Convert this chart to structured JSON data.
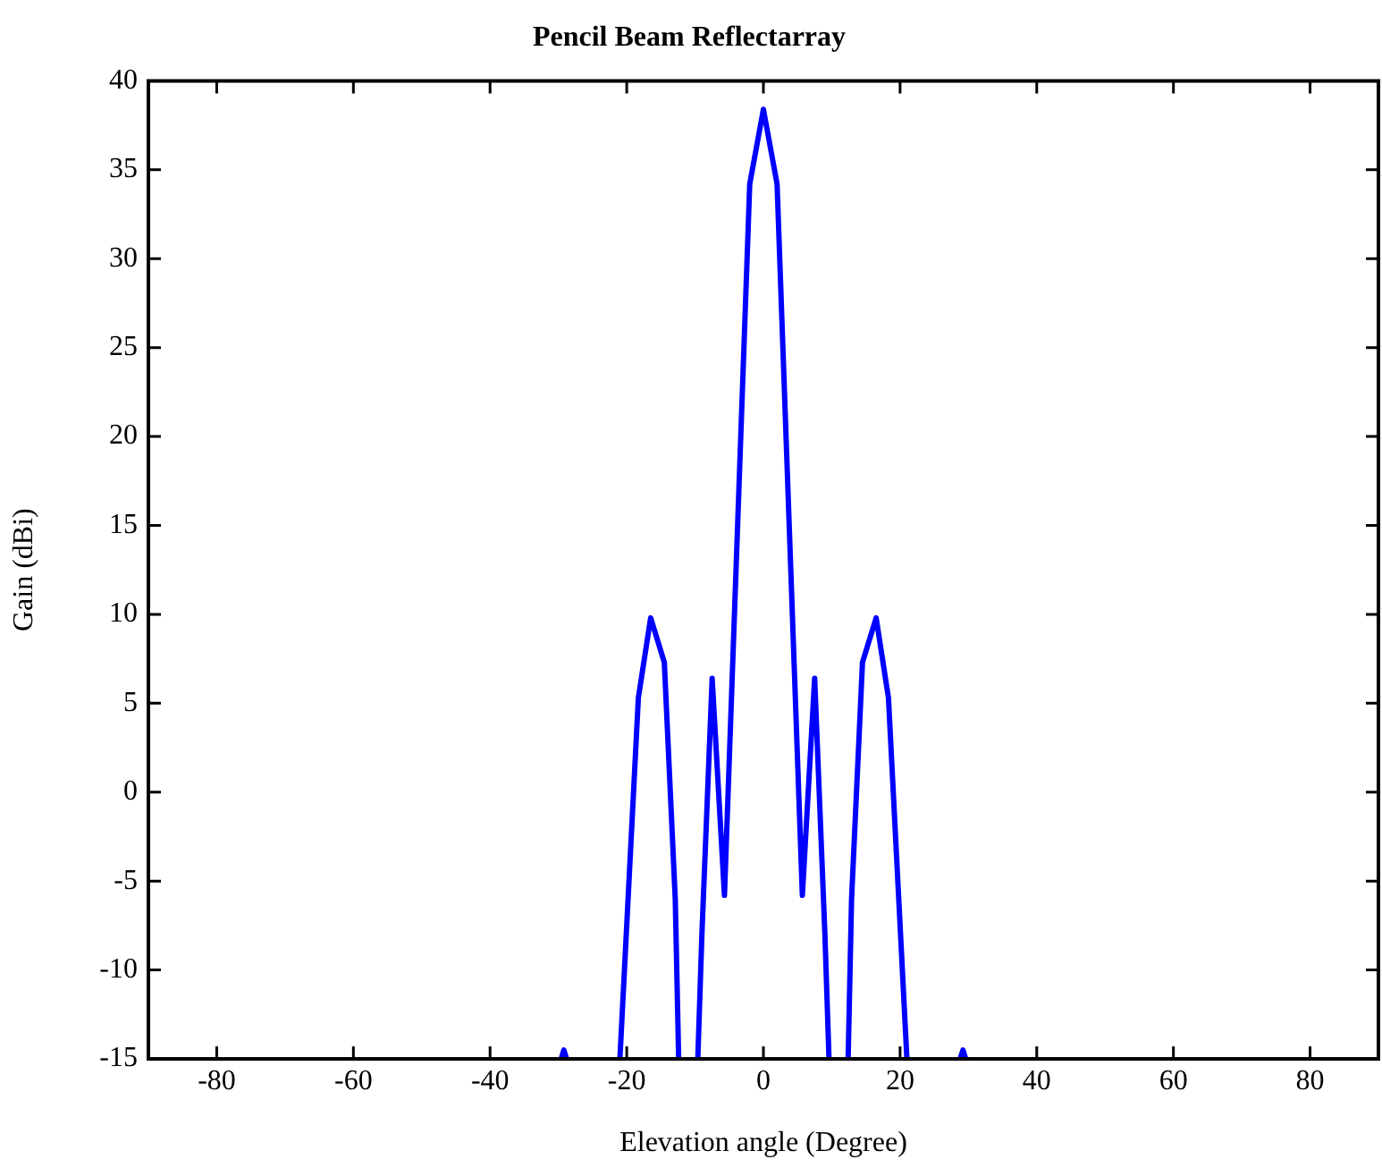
{
  "chart_data": {
    "type": "line",
    "title": "Pencil Beam Reflectarray",
    "xlabel": "Elevation angle (Degree)",
    "ylabel": "Gain (dBi)",
    "x": [
      -29.6,
      -29.2,
      -28.8,
      -25,
      -21,
      -18.3,
      -16.5,
      -14.5,
      -12.9,
      -12.4,
      -11,
      -9.6,
      -9.0,
      -7.5,
      -5.7,
      -2.0,
      0,
      2.0,
      5.7,
      7.5,
      9.0,
      9.6,
      11,
      12.4,
      12.9,
      14.5,
      16.5,
      18.3,
      21,
      25,
      28.8,
      29.2,
      29.6
    ],
    "series": [
      {
        "color": "#0000ff",
        "values": [
          -15,
          -14.5,
          -15,
          null,
          -15,
          5.3,
          9.8,
          7.3,
          -6,
          -15,
          null,
          -15,
          -8,
          6.4,
          -5.8,
          34.2,
          38.4,
          34.2,
          -5.8,
          6.4,
          -8,
          -15,
          null,
          -15,
          -6,
          7.3,
          9.8,
          5.3,
          -15,
          null,
          -15,
          -14.5,
          -15
        ]
      }
    ],
    "xlim": [
      -90,
      90
    ],
    "xticks": [
      -80,
      -60,
      -40,
      -20,
      0,
      20,
      40,
      60,
      80
    ],
    "ylim": [
      -15,
      40
    ],
    "yticks": [
      -15,
      -10,
      -5,
      0,
      5,
      10,
      15,
      20,
      25,
      30,
      35,
      40
    ],
    "legend": false,
    "marker": "none",
    "line_style": "solid"
  }
}
